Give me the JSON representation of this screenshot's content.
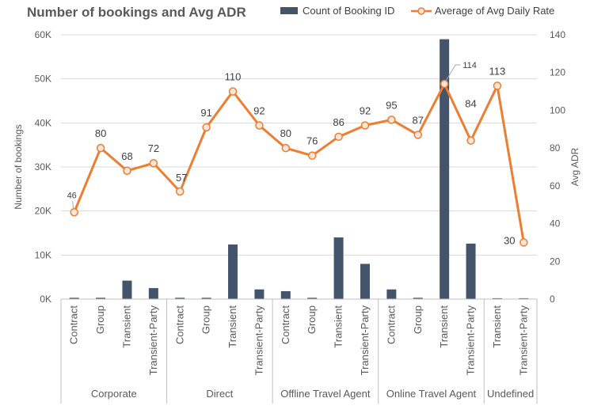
{
  "title": "Number of bookings and Avg ADR",
  "legend": {
    "bar_label": "Count of Booking ID",
    "line_label": "Average of Avg Daily Rate"
  },
  "colors": {
    "bar": "#44546a",
    "line": "#ed7d31",
    "marker_fill": "#fbe5d6",
    "grid": "#d9d9d9",
    "axis_text": "#595959"
  },
  "chart_data": {
    "type": "bar+line",
    "title": "Number of bookings and Avg ADR",
    "ylabel_left": "Number of bookings",
    "ylabel_right": "Avg ADR",
    "y_left_ticks": [
      "0K",
      "10K",
      "20K",
      "30K",
      "40K",
      "50K",
      "60K"
    ],
    "y_right_ticks": [
      "0",
      "20",
      "40",
      "60",
      "80",
      "100",
      "120",
      "140"
    ],
    "ylim_left": [
      0,
      60000
    ],
    "ylim_right": [
      0,
      140
    ],
    "grid": true,
    "legend_position": "top",
    "groups": [
      {
        "name": "Corporate",
        "categories": [
          "Contract",
          "Group",
          "Transient",
          "Transient-Party"
        ]
      },
      {
        "name": "Direct",
        "categories": [
          "Contract",
          "Group",
          "Transient",
          "Transient-Party"
        ]
      },
      {
        "name": "Offline Travel Agent",
        "categories": [
          "Contract",
          "Group",
          "Transient",
          "Transient-Party"
        ]
      },
      {
        "name": "Online Travel Agent",
        "categories": [
          "Contract",
          "Group",
          "Transient",
          "Transient-Party"
        ]
      },
      {
        "name": "Undefined",
        "categories": [
          "Transient",
          "Transient-Party"
        ]
      }
    ],
    "series": [
      {
        "name": "Count of Booking ID",
        "type": "bar",
        "axis": "left",
        "values": [
          300,
          300,
          4200,
          2500,
          300,
          300,
          12400,
          2200,
          1800,
          300,
          14000,
          8000,
          2200,
          300,
          59000,
          12600,
          200,
          200
        ]
      },
      {
        "name": "Average of Avg Daily Rate",
        "type": "line",
        "axis": "right",
        "values": [
          46,
          80,
          68,
          72,
          57,
          91,
          110,
          92,
          80,
          76,
          86,
          92,
          95,
          87,
          114,
          84,
          113,
          30
        ],
        "labels": [
          "46",
          "80",
          "68",
          "72",
          "57",
          "91",
          "110",
          "92",
          "80",
          "76",
          "86",
          "92",
          "95",
          "87",
          "114",
          "84",
          "113",
          "30"
        ]
      }
    ]
  }
}
